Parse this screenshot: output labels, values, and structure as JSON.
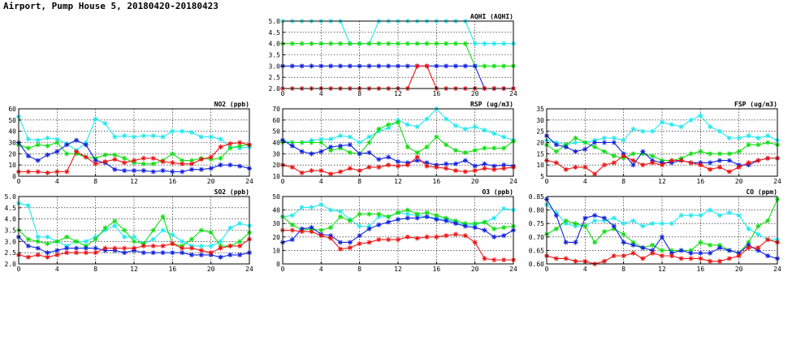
{
  "page": {
    "title": "Airport, Pump House 5, 20180420-20180423"
  },
  "colors": {
    "red": "#ee1111",
    "green": "#11dd11",
    "blue": "#1122dd",
    "cyan": "#22e8ee",
    "grid": "#000000"
  },
  "chart_data": [
    {
      "type": "line",
      "title": "AQHI (AQHI)",
      "x": [
        0,
        1,
        2,
        3,
        4,
        5,
        6,
        7,
        8,
        9,
        10,
        11,
        12,
        13,
        14,
        15,
        16,
        17,
        18,
        19,
        20,
        21,
        22,
        23,
        24
      ],
      "xlim": [
        0,
        24
      ],
      "xticks": [
        0,
        4,
        8,
        12,
        16,
        20,
        24
      ],
      "ylim": [
        2,
        5
      ],
      "yticks": [
        "2.0",
        "2.5",
        "3.0",
        "3.5",
        "4.0",
        "4.5",
        "5.0"
      ],
      "series": [
        {
          "color": "cyan",
          "values": [
            5,
            5,
            5,
            5,
            5,
            5,
            5,
            4,
            4,
            4,
            5,
            5,
            5,
            5,
            5,
            5,
            5,
            5,
            5,
            5,
            4,
            4,
            4,
            4,
            4
          ]
        },
        {
          "color": "green",
          "values": [
            4,
            4,
            4,
            4,
            4,
            4,
            4,
            4,
            4,
            4,
            4,
            4,
            4,
            4,
            4,
            4,
            4,
            4,
            4,
            4,
            3,
            3,
            3,
            3,
            3
          ]
        },
        {
          "color": "blue",
          "values": [
            3,
            3,
            3,
            3,
            3,
            3,
            3,
            3,
            3,
            3,
            3,
            3,
            3,
            3,
            3,
            3,
            3,
            3,
            3,
            3,
            3,
            2,
            2,
            2,
            2
          ]
        },
        {
          "color": "red",
          "values": [
            2,
            2,
            2,
            2,
            2,
            2,
            2,
            2,
            2,
            2,
            2,
            2,
            2,
            2,
            3,
            3,
            2,
            2,
            2,
            2,
            2,
            2,
            2,
            2,
            2
          ]
        }
      ]
    },
    {
      "type": "line",
      "title": "NO2 (ppb)",
      "x": [
        0,
        1,
        2,
        3,
        4,
        5,
        6,
        7,
        8,
        9,
        10,
        11,
        12,
        13,
        14,
        15,
        16,
        17,
        18,
        19,
        20,
        21,
        22,
        23,
        24
      ],
      "xlim": [
        0,
        24
      ],
      "xticks": [
        0,
        4,
        8,
        12,
        16,
        20,
        24
      ],
      "ylim": [
        0,
        60
      ],
      "yticks": [
        "0",
        "10",
        "20",
        "30",
        "40",
        "50",
        "60"
      ],
      "series": [
        {
          "color": "cyan",
          "values": [
            53,
            33,
            32,
            34,
            33,
            29,
            23,
            30,
            51,
            47,
            35,
            36,
            35,
            36,
            36,
            35,
            40,
            40,
            39,
            35,
            35,
            33,
            26,
            25,
            26
          ]
        },
        {
          "color": "green",
          "values": [
            28,
            25,
            28,
            27,
            30,
            20,
            20,
            17,
            16,
            19,
            19,
            16,
            12,
            11,
            11,
            14,
            20,
            14,
            14,
            16,
            15,
            16,
            25,
            27,
            28
          ]
        },
        {
          "color": "blue",
          "values": [
            30,
            18,
            14,
            19,
            22,
            28,
            32,
            28,
            14,
            12,
            6,
            5,
            5,
            5,
            4,
            5,
            4,
            4,
            6,
            6,
            7,
            10,
            10,
            9,
            7
          ]
        },
        {
          "color": "red",
          "values": [
            4,
            4,
            4,
            3,
            4,
            4,
            22,
            17,
            11,
            13,
            15,
            12,
            14,
            16,
            16,
            13,
            12,
            11,
            11,
            15,
            17,
            26,
            29,
            30,
            28
          ]
        }
      ]
    },
    {
      "type": "line",
      "title": "RSP (ug/m3)",
      "x": [
        0,
        1,
        2,
        3,
        4,
        5,
        6,
        7,
        8,
        9,
        10,
        11,
        12,
        13,
        14,
        15,
        16,
        17,
        18,
        19,
        20,
        21,
        22,
        23,
        24
      ],
      "xlim": [
        0,
        24
      ],
      "xticks": [
        0,
        4,
        8,
        12,
        16,
        20,
        24
      ],
      "ylim": [
        10,
        70
      ],
      "yticks": [
        "10",
        "20",
        "30",
        "40",
        "50",
        "60",
        "70"
      ],
      "series": [
        {
          "color": "cyan",
          "values": [
            42,
            40,
            40,
            42,
            43,
            43,
            46,
            45,
            40,
            45,
            50,
            53,
            60,
            56,
            54,
            61,
            70,
            61,
            55,
            52,
            54,
            51,
            48,
            45,
            42
          ]
        },
        {
          "color": "green",
          "values": [
            40,
            40,
            40,
            40,
            40,
            33,
            35,
            31,
            30,
            40,
            52,
            56,
            58,
            36,
            31,
            36,
            45,
            38,
            33,
            31,
            33,
            35,
            35,
            35,
            41
          ]
        },
        {
          "color": "blue",
          "values": [
            42,
            37,
            32,
            30,
            32,
            36,
            37,
            38,
            30,
            31,
            25,
            27,
            23,
            22,
            24,
            22,
            20,
            21,
            21,
            24,
            19,
            21,
            19,
            20,
            19
          ]
        },
        {
          "color": "red",
          "values": [
            20,
            18,
            13,
            15,
            15,
            12,
            14,
            17,
            15,
            18,
            18,
            20,
            19,
            20,
            27,
            19,
            18,
            17,
            15,
            14,
            15,
            17,
            16,
            17,
            18
          ]
        }
      ]
    },
    {
      "type": "line",
      "title": "FSP (ug/m3)",
      "x": [
        0,
        1,
        2,
        3,
        4,
        5,
        6,
        7,
        8,
        9,
        10,
        11,
        12,
        13,
        14,
        15,
        16,
        17,
        18,
        19,
        20,
        21,
        22,
        23,
        24
      ],
      "xlim": [
        0,
        24
      ],
      "xticks": [
        0,
        4,
        8,
        12,
        16,
        20,
        24
      ],
      "ylim": [
        5,
        35
      ],
      "yticks": [
        "5",
        "10",
        "15",
        "20",
        "25",
        "30",
        "35"
      ],
      "series": [
        {
          "color": "cyan",
          "values": [
            21,
            20,
            19,
            20,
            20,
            21,
            22,
            22,
            21,
            26,
            25,
            25,
            29,
            28,
            27,
            30,
            32,
            27,
            25,
            22,
            22,
            23,
            22,
            23,
            21
          ]
        },
        {
          "color": "green",
          "values": [
            19,
            16,
            19,
            22,
            20,
            18,
            16,
            14,
            13,
            15,
            15,
            14,
            12,
            12,
            13,
            15,
            16,
            15,
            15,
            15,
            16,
            19,
            19,
            20,
            19
          ]
        },
        {
          "color": "blue",
          "values": [
            23,
            19,
            18,
            16,
            17,
            20,
            20,
            20,
            15,
            10,
            16,
            12,
            11,
            11,
            12,
            11,
            11,
            11,
            12,
            12,
            10,
            10,
            12,
            13,
            13
          ]
        },
        {
          "color": "red",
          "values": [
            12,
            11,
            8,
            9,
            9,
            6,
            10,
            11,
            14,
            12,
            10,
            11,
            10,
            12,
            12,
            11,
            10,
            8,
            9,
            7,
            9,
            11,
            12,
            13,
            13
          ]
        }
      ]
    },
    {
      "type": "line",
      "title": "SO2 (ppb)",
      "x": [
        0,
        1,
        2,
        3,
        4,
        5,
        6,
        7,
        8,
        9,
        10,
        11,
        12,
        13,
        14,
        15,
        16,
        17,
        18,
        19,
        20,
        21,
        22,
        23,
        24
      ],
      "xlim": [
        0,
        24
      ],
      "xticks": [
        0,
        4,
        8,
        12,
        16,
        20,
        24
      ],
      "ylim": [
        2,
        5
      ],
      "yticks": [
        "2.0",
        "2.5",
        "3.0",
        "3.5",
        "4.0",
        "4.5",
        "5.0"
      ],
      "series": [
        {
          "color": "cyan",
          "values": [
            4.7,
            4.6,
            3.2,
            3.2,
            3.0,
            2.8,
            3.0,
            3.0,
            3.2,
            3.5,
            3.7,
            3.2,
            3.2,
            2.9,
            3.1,
            3.5,
            3.3,
            3.0,
            2.8,
            2.8,
            2.8,
            3.0,
            3.6,
            3.8,
            3.7
          ]
        },
        {
          "color": "green",
          "values": [
            3.5,
            3.1,
            3.0,
            2.9,
            3.0,
            3.2,
            3.0,
            2.8,
            3.1,
            3.6,
            3.9,
            3.5,
            3.0,
            2.9,
            3.5,
            4.1,
            2.9,
            2.8,
            3.1,
            3.5,
            3.4,
            2.8,
            2.8,
            3.0,
            3.4
          ]
        },
        {
          "color": "blue",
          "values": [
            3.2,
            2.8,
            2.7,
            2.5,
            2.6,
            2.7,
            2.7,
            2.7,
            2.7,
            2.6,
            2.6,
            2.5,
            2.6,
            2.5,
            2.5,
            2.5,
            2.5,
            2.5,
            2.4,
            2.4,
            2.4,
            2.3,
            2.4,
            2.4,
            2.5
          ]
        },
        {
          "color": "red",
          "values": [
            2.4,
            2.3,
            2.4,
            2.3,
            2.4,
            2.5,
            2.5,
            2.5,
            2.5,
            2.7,
            2.7,
            2.7,
            2.7,
            2.8,
            2.8,
            2.8,
            2.9,
            2.7,
            2.7,
            2.6,
            2.5,
            2.7,
            2.8,
            2.8,
            3.1
          ]
        }
      ]
    },
    {
      "type": "line",
      "title": "O3 (ppb)",
      "x": [
        0,
        1,
        2,
        3,
        4,
        5,
        6,
        7,
        8,
        9,
        10,
        11,
        12,
        13,
        14,
        15,
        16,
        17,
        18,
        19,
        20,
        21,
        22,
        23,
        24
      ],
      "xlim": [
        0,
        24
      ],
      "xticks": [
        0,
        4,
        8,
        12,
        16,
        20,
        24
      ],
      "ylim": [
        0,
        50
      ],
      "yticks": [
        "0",
        "10",
        "20",
        "30",
        "40",
        "50"
      ],
      "series": [
        {
          "color": "cyan",
          "values": [
            35,
            36,
            42,
            42,
            44,
            40,
            39,
            33,
            28,
            28,
            35,
            35,
            38,
            37,
            36,
            35,
            34,
            33,
            31,
            29,
            29,
            31,
            34,
            41,
            40
          ]
        },
        {
          "color": "green",
          "values": [
            35,
            29,
            25,
            26,
            25,
            27,
            35,
            32,
            37,
            37,
            37,
            35,
            38,
            40,
            37,
            38,
            36,
            34,
            32,
            30,
            30,
            31,
            26,
            27,
            28
          ]
        },
        {
          "color": "blue",
          "values": [
            16,
            18,
            26,
            27,
            22,
            21,
            16,
            16,
            21,
            26,
            29,
            31,
            33,
            34,
            34,
            35,
            33,
            32,
            30,
            28,
            27,
            25,
            20,
            21,
            25
          ]
        },
        {
          "color": "red",
          "values": [
            25,
            25,
            24,
            24,
            21,
            19,
            11,
            12,
            15,
            16,
            18,
            18,
            18,
            20,
            19,
            20,
            20,
            21,
            22,
            21,
            16,
            4,
            3,
            3,
            3
          ]
        }
      ]
    },
    {
      "type": "line",
      "title": "CO (ppm)",
      "x": [
        0,
        1,
        2,
        3,
        4,
        5,
        6,
        7,
        8,
        9,
        10,
        11,
        12,
        13,
        14,
        15,
        16,
        17,
        18,
        19,
        20,
        21,
        22,
        23,
        24
      ],
      "xlim": [
        0,
        24
      ],
      "xticks": [
        0,
        4,
        8,
        12,
        16,
        20,
        24
      ],
      "ylim": [
        0.6,
        0.85
      ],
      "yticks": [
        "0.60",
        "0.65",
        "0.70",
        "0.75",
        "0.80",
        "0.85"
      ],
      "series": [
        {
          "color": "cyan",
          "values": [
            0.82,
            0.79,
            0.75,
            0.74,
            0.74,
            0.76,
            0.76,
            0.77,
            0.75,
            0.76,
            0.74,
            0.75,
            0.75,
            0.75,
            0.78,
            0.78,
            0.78,
            0.8,
            0.78,
            0.79,
            0.78,
            0.73,
            0.71,
            0.69,
            0.69
          ]
        },
        {
          "color": "green",
          "values": [
            0.71,
            0.73,
            0.76,
            0.75,
            0.74,
            0.68,
            0.72,
            0.73,
            0.71,
            0.68,
            0.66,
            0.67,
            0.65,
            0.65,
            0.65,
            0.65,
            0.68,
            0.67,
            0.67,
            0.65,
            0.64,
            0.68,
            0.74,
            0.76,
            0.84
          ]
        },
        {
          "color": "blue",
          "values": [
            0.84,
            0.78,
            0.68,
            0.68,
            0.77,
            0.78,
            0.77,
            0.74,
            0.68,
            0.67,
            0.66,
            0.65,
            0.7,
            0.64,
            0.65,
            0.64,
            0.64,
            0.64,
            0.66,
            0.65,
            0.64,
            0.67,
            0.65,
            0.63,
            0.62
          ]
        },
        {
          "color": "red",
          "values": [
            0.63,
            0.62,
            0.62,
            0.61,
            0.61,
            0.6,
            0.61,
            0.63,
            0.63,
            0.64,
            0.62,
            0.64,
            0.63,
            0.63,
            0.62,
            0.62,
            0.62,
            0.61,
            0.61,
            0.62,
            0.63,
            0.66,
            0.66,
            0.69,
            0.68
          ]
        }
      ]
    }
  ]
}
